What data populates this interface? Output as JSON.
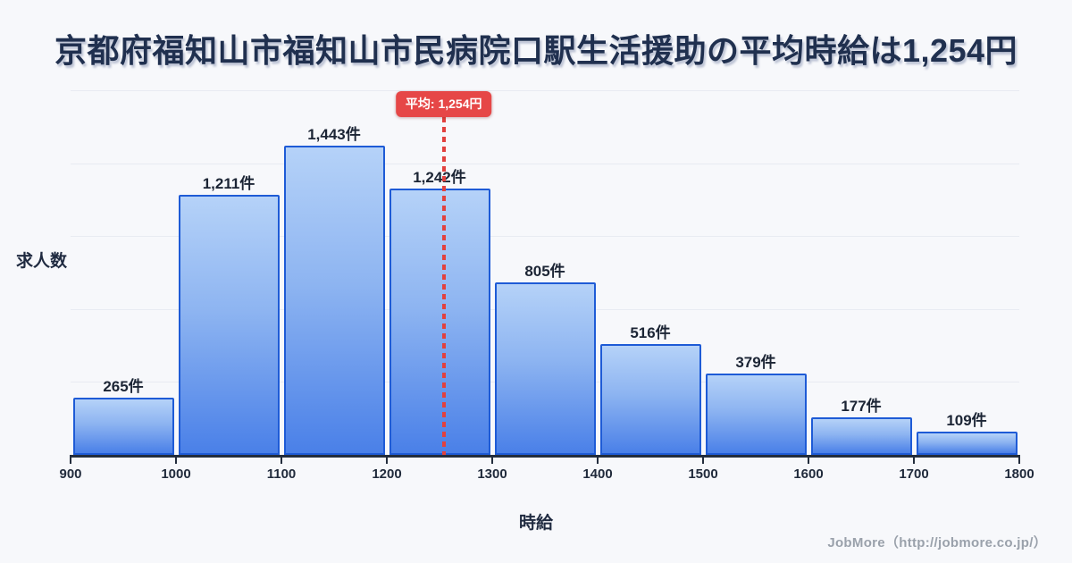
{
  "title": {
    "text": "京都府福知山市福知山市民病院口駅生活援助の平均時給は1,254円"
  },
  "chart_data": {
    "type": "bar",
    "subtype": "histogram",
    "categories": [
      900,
      1000,
      1100,
      1200,
      1300,
      1400,
      1500,
      1600,
      1700
    ],
    "values": [
      265,
      1211,
      1443,
      1242,
      805,
      516,
      379,
      177,
      109
    ],
    "bar_labels": [
      "265件",
      "1,211件",
      "1,443件",
      "1,242件",
      "805件",
      "516件",
      "379件",
      "177件",
      "109件"
    ],
    "x_tick_labels": [
      "900",
      "1000",
      "1100",
      "1200",
      "1300",
      "1400",
      "1500",
      "1600",
      "1700",
      "1800"
    ],
    "x_range": [
      900,
      1800
    ],
    "ylim": [
      0,
      1700
    ],
    "grid": true,
    "gridline_count": 5,
    "xlabel": "時給",
    "ylabel": "求人数",
    "average": {
      "value": 1254,
      "label": "平均: 1,254円"
    },
    "colors": {
      "bar_fill_top": "#b5d2f8",
      "bar_fill_bottom": "#4a80e8",
      "bar_border": "#1e5bd6",
      "average_red": "#e64747",
      "axis": "#232d3d",
      "gridline": "#e8ebf2",
      "background": "#f7f8fb",
      "title_text": "#20304f"
    }
  },
  "footer": {
    "credit": "JobMore（http://jobmore.co.jp/）"
  }
}
